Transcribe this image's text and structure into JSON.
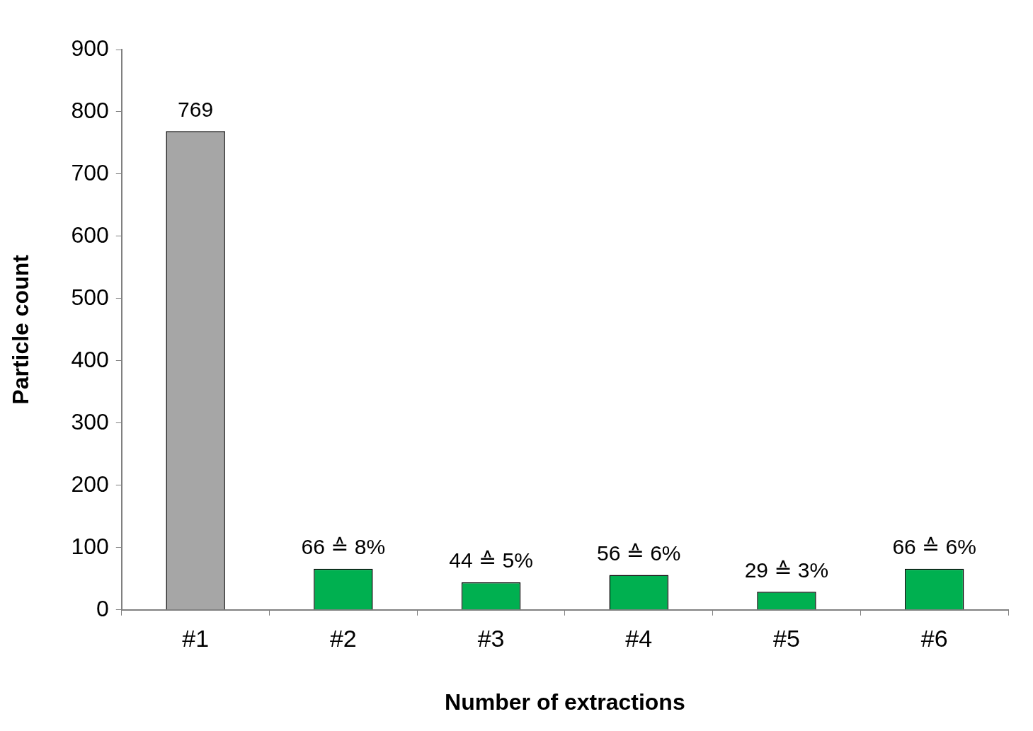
{
  "chart_data": {
    "type": "bar",
    "x_label": "Number of extractions",
    "y_label": "Particle count",
    "categories": [
      "#1",
      "#2",
      "#3",
      "#4",
      "#5",
      "#6"
    ],
    "values": [
      769,
      66,
      44,
      56,
      29,
      66
    ],
    "value_labels": [
      "769",
      "66 ≙ 8%",
      "44 ≙ 5%",
      "56 ≙ 6%",
      "29 ≙ 3%",
      "66 ≙ 6%"
    ],
    "colors": [
      "#a6a6a6",
      "#00b050",
      "#00b050",
      "#00b050",
      "#00b050",
      "#00b050"
    ],
    "ylim": [
      0,
      900
    ],
    "yticks": [
      0,
      100,
      200,
      300,
      400,
      500,
      600,
      700,
      800,
      900
    ],
    "grid": false,
    "data_labels": true
  }
}
